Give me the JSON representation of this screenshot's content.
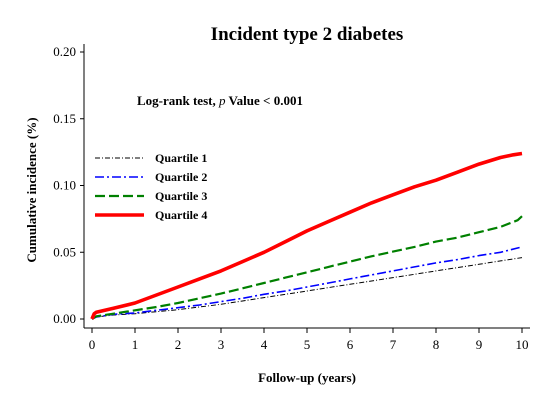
{
  "chart_data": {
    "type": "line",
    "title": "Incident type 2 diabetes",
    "xlabel": "Follow-up (years)",
    "ylabel": "Cumulative incidence (%)",
    "annotation_prefix": "Log-rank test, ",
    "annotation_italic": "p",
    "annotation_suffix": " Value < 0.001",
    "xlim": [
      0,
      10
    ],
    "ylim": [
      0,
      0.2
    ],
    "x_ticks": [
      0,
      1,
      2,
      3,
      4,
      5,
      6,
      7,
      8,
      9,
      10
    ],
    "y_ticks": [
      "0.00",
      "0.05",
      "0.10",
      "0.15",
      "0.20"
    ],
    "y_tick_values": [
      0,
      0.05,
      0.1,
      0.15,
      0.2
    ],
    "grid": false,
    "legend_position": "upper-left",
    "series": [
      {
        "name": "Quartile 1",
        "color": "#000000",
        "style": "dash-dot",
        "x": [
          0,
          0.1,
          0.5,
          1,
          1.5,
          2,
          2.5,
          3,
          3.5,
          4,
          4.5,
          5,
          5.5,
          6,
          6.5,
          7,
          7.5,
          8,
          8.5,
          9,
          9.5,
          10
        ],
        "y": [
          0,
          0.0015,
          0.003,
          0.004,
          0.0055,
          0.007,
          0.009,
          0.011,
          0.0135,
          0.016,
          0.0185,
          0.021,
          0.0235,
          0.026,
          0.0285,
          0.031,
          0.0335,
          0.036,
          0.0385,
          0.041,
          0.0435,
          0.046
        ]
      },
      {
        "name": "Quartile 2",
        "color": "#0000ff",
        "style": "long-dash-dot",
        "x": [
          0,
          0.1,
          0.5,
          1,
          1.5,
          2,
          2.5,
          3,
          3.5,
          4,
          4.5,
          5,
          5.5,
          6,
          6.5,
          7,
          7.5,
          8,
          8.5,
          9,
          9.5,
          10
        ],
        "y": [
          0,
          0.0015,
          0.0035,
          0.0045,
          0.0065,
          0.0085,
          0.0105,
          0.013,
          0.0155,
          0.0185,
          0.021,
          0.024,
          0.027,
          0.03,
          0.033,
          0.036,
          0.039,
          0.042,
          0.0445,
          0.0475,
          0.05,
          0.054
        ]
      },
      {
        "name": "Quartile 3",
        "color": "#008000",
        "style": "dash",
        "x": [
          0,
          0.1,
          0.5,
          1,
          1.5,
          2,
          2.5,
          3,
          3.5,
          4,
          4.5,
          5,
          5.5,
          6,
          6.5,
          7,
          7.5,
          8,
          8.5,
          9,
          9.5,
          9.9,
          10
        ],
        "y": [
          0,
          0.002,
          0.004,
          0.0065,
          0.009,
          0.012,
          0.0155,
          0.019,
          0.023,
          0.027,
          0.031,
          0.035,
          0.039,
          0.043,
          0.047,
          0.0505,
          0.054,
          0.058,
          0.061,
          0.065,
          0.069,
          0.074,
          0.077
        ]
      },
      {
        "name": "Quartile 4",
        "color": "#ff0000",
        "style": "solid",
        "x": [
          0,
          0.05,
          0.1,
          0.5,
          1,
          1.5,
          2,
          2.5,
          3,
          3.5,
          4,
          4.5,
          5,
          5.5,
          6,
          6.5,
          7,
          7.5,
          8,
          8.5,
          9,
          9.5,
          9.8,
          10
        ],
        "y": [
          0,
          0.004,
          0.005,
          0.008,
          0.012,
          0.018,
          0.024,
          0.03,
          0.036,
          0.043,
          0.05,
          0.058,
          0.066,
          0.073,
          0.08,
          0.087,
          0.093,
          0.099,
          0.104,
          0.11,
          0.116,
          0.121,
          0.123,
          0.124
        ]
      }
    ]
  }
}
